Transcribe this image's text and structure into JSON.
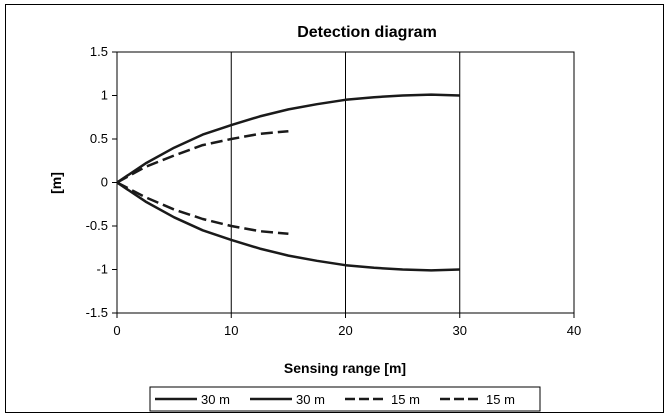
{
  "chart_data": {
    "type": "line",
    "title": "Detection diagram",
    "xlabel": "Sensing range [m]",
    "ylabel": "[m]",
    "xlim": [
      0,
      40
    ],
    "ylim": [
      -1.5,
      1.5
    ],
    "xticks": [
      0,
      10,
      20,
      30,
      40
    ],
    "yticks": [
      1.5,
      1,
      0.5,
      0,
      -0.5,
      -1,
      -1.5
    ],
    "grid": "vertical",
    "legend_position": "bottom",
    "series": [
      {
        "name": "30 m",
        "style": "solid",
        "x": [
          0,
          2.5,
          5,
          7.5,
          10,
          12.5,
          15,
          17.5,
          20,
          22.5,
          25,
          27.5,
          30
        ],
        "y": [
          0,
          0.22,
          0.4,
          0.55,
          0.66,
          0.76,
          0.84,
          0.9,
          0.95,
          0.98,
          1.0,
          1.01,
          1.0
        ]
      },
      {
        "name": "30 m",
        "style": "solid",
        "x": [
          0,
          2.5,
          5,
          7.5,
          10,
          12.5,
          15,
          17.5,
          20,
          22.5,
          25,
          27.5,
          30
        ],
        "y": [
          0,
          -0.22,
          -0.4,
          -0.55,
          -0.66,
          -0.76,
          -0.84,
          -0.9,
          -0.95,
          -0.98,
          -1.0,
          -1.01,
          -1.0
        ]
      },
      {
        "name": "15 m",
        "style": "dashed",
        "x": [
          0,
          2.5,
          5,
          7.5,
          10,
          12.5,
          15
        ],
        "y": [
          0,
          0.18,
          0.31,
          0.43,
          0.5,
          0.56,
          0.59
        ]
      },
      {
        "name": "15 m",
        "style": "dashed",
        "x": [
          0,
          2.5,
          5,
          7.5,
          10,
          12.5,
          15
        ],
        "y": [
          0,
          -0.17,
          -0.31,
          -0.42,
          -0.5,
          -0.56,
          -0.59
        ]
      }
    ]
  }
}
